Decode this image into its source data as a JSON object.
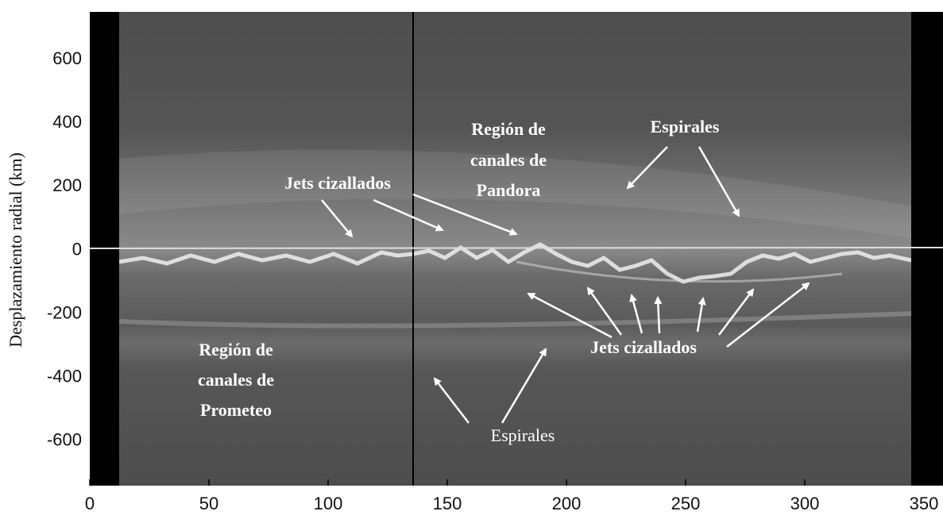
{
  "chart_data": {
    "type": "image",
    "y_label": "Desplazamiento radial (km)",
    "xlim": [
      0,
      358
    ],
    "ylim": [
      -740,
      750
    ],
    "xticks": [
      0,
      50,
      100,
      150,
      200,
      250,
      300,
      350
    ],
    "yticks": [
      -600,
      -400,
      -200,
      0,
      200,
      400,
      600
    ],
    "annotations": [
      "Región de",
      "canales de",
      "Pandora",
      "Espirales",
      "Jets cizallados",
      "Jets cizallados",
      "Región de",
      "canales de",
      "Prometeo",
      "Espirales"
    ]
  }
}
